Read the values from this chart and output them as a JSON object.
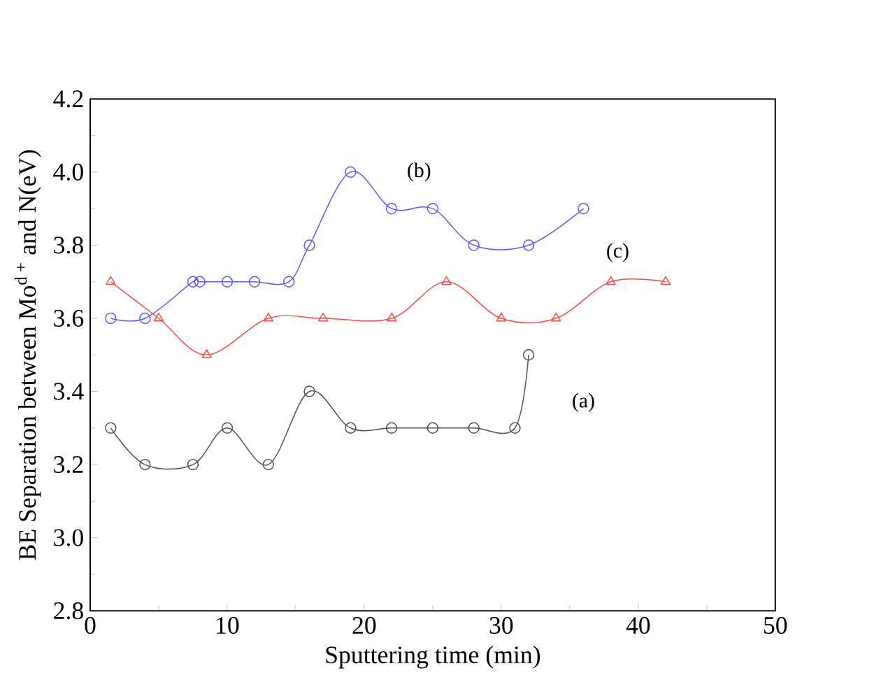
{
  "chart_data": {
    "type": "line",
    "xlabel": "Sputtering time (min)",
    "ylabel": "BE Separation between Mo$^{d +}$ and N(eV)",
    "xlim": [
      0,
      50
    ],
    "xticks": [
      0,
      10,
      20,
      30,
      40,
      50
    ],
    "ylim": [
      2.8,
      4.2
    ],
    "yticks": [
      2.8,
      {
        "value": 3,
        "label": "3.0"
      },
      3.2,
      3.4,
      3.6,
      3.8,
      {
        "value": 4,
        "label": "4.0"
      },
      4.2
    ],
    "grid": false,
    "legend": false,
    "series": [
      {
        "name": "(a)",
        "color": "#505050",
        "marker": "circle",
        "x": [
          1.5,
          4,
          7.5,
          10,
          13,
          16,
          19,
          22,
          25,
          28,
          31,
          32
        ],
        "values": [
          3.3,
          3.2,
          3.2,
          3.3,
          3.2,
          3.4,
          3.3,
          3.3,
          3.3,
          3.3,
          3.3,
          3.5
        ]
      },
      {
        "name": "(b)",
        "color": "#5a5aff",
        "marker": "circle",
        "x": [
          1.5,
          4,
          7.5,
          8,
          10,
          12,
          14.5,
          16,
          19,
          22,
          25,
          28,
          32,
          36
        ],
        "values": [
          3.6,
          3.6,
          3.7,
          3.7,
          3.7,
          3.7,
          3.7,
          3.8,
          4.0,
          3.9,
          3.9,
          3.8,
          3.8,
          3.9
        ]
      },
      {
        "name": "(c)",
        "color": "#ff4a4a",
        "marker": "triangle",
        "x": [
          1.5,
          5,
          8.5,
          13,
          17,
          22,
          26,
          30,
          34,
          38,
          42
        ],
        "values": [
          3.7,
          3.6,
          3.5,
          3.6,
          3.6,
          3.6,
          3.7,
          3.6,
          3.6,
          3.7,
          3.7
        ]
      }
    ]
  }
}
